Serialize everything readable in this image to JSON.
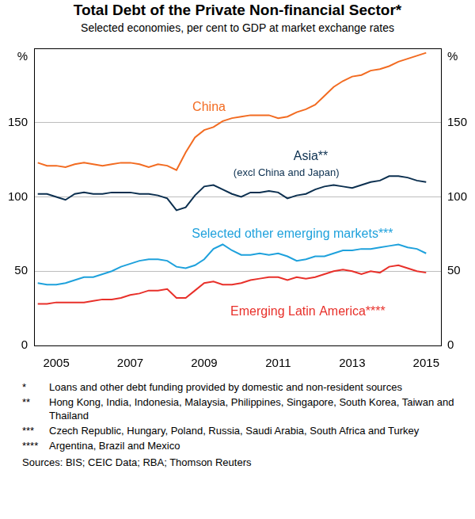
{
  "chart_data": {
    "type": "line",
    "title": "Total Debt of the Private Non-financial Sector*",
    "subtitle": "Selected economies, per cent to GDP at market exchange rates",
    "ylabel": "%",
    "x": [
      2004.5,
      2004.75,
      2005,
      2005.25,
      2005.5,
      2005.75,
      2006,
      2006.25,
      2006.5,
      2006.75,
      2007,
      2007.25,
      2007.5,
      2007.75,
      2008,
      2008.25,
      2008.5,
      2008.75,
      2009,
      2009.25,
      2009.5,
      2009.75,
      2010,
      2010.25,
      2010.5,
      2010.75,
      2011,
      2011.25,
      2011.5,
      2011.75,
      2012,
      2012.25,
      2012.5,
      2012.75,
      2013,
      2013.25,
      2013.5,
      2013.75,
      2014,
      2014.25,
      2014.5,
      2014.75,
      2015
    ],
    "xlim": [
      2004.4,
      2015.4
    ],
    "xticks": [
      2005,
      2007,
      2009,
      2011,
      2013,
      2015
    ],
    "ylim": [
      0,
      200
    ],
    "yticks": [
      0,
      50,
      100,
      150
    ],
    "grid": true,
    "series": [
      {
        "name": "China",
        "color": "#f26b21",
        "values": [
          123,
          121,
          121,
          120,
          122,
          123,
          122,
          121,
          122,
          123,
          123,
          122,
          120,
          122,
          121,
          118,
          130,
          140,
          145,
          147,
          151,
          153,
          154,
          155,
          155,
          155,
          153,
          154,
          157,
          159,
          162,
          168,
          174,
          178,
          181,
          182,
          185,
          186,
          188,
          191,
          193,
          195,
          197
        ]
      },
      {
        "name": "Asia**",
        "color": "#0b2f4f",
        "values": [
          102,
          102,
          100,
          98,
          102,
          103,
          102,
          102,
          103,
          103,
          103,
          102,
          102,
          101,
          99,
          91,
          93,
          101,
          107,
          108,
          105,
          102,
          100,
          103,
          103,
          104,
          103,
          99,
          101,
          102,
          105,
          107,
          108,
          107,
          106,
          108,
          110,
          111,
          114,
          114,
          113,
          111,
          110
        ]
      },
      {
        "name": "Selected other emerging markets***",
        "color": "#1ea1dc",
        "values": [
          42,
          41,
          41,
          42,
          44,
          46,
          46,
          48,
          50,
          53,
          55,
          57,
          58,
          58,
          57,
          53,
          52,
          54,
          58,
          65,
          68,
          64,
          61,
          61,
          62,
          61,
          62,
          60,
          57,
          58,
          60,
          60,
          62,
          64,
          64,
          65,
          65,
          66,
          67,
          68,
          66,
          65,
          62
        ]
      },
      {
        "name": "Emerging Latin America****",
        "color": "#e8302a",
        "values": [
          28,
          28,
          29,
          29,
          29,
          29,
          30,
          31,
          31,
          32,
          34,
          35,
          37,
          37,
          38,
          32,
          32,
          37,
          42,
          43,
          41,
          41,
          42,
          44,
          45,
          46,
          46,
          44,
          46,
          45,
          46,
          48,
          50,
          51,
          50,
          48,
          50,
          49,
          53,
          54,
          52,
          50,
          49
        ]
      }
    ],
    "annotations": [
      "(excl China and Japan)"
    ],
    "notes": [
      {
        "mark": "*",
        "text": "Loans and other debt funding provided by domestic and non-resident sources"
      },
      {
        "mark": "**",
        "text": "Hong Kong, India, Indonesia, Malaysia, Philippines, Singapore, South Korea, Taiwan and Thailand"
      },
      {
        "mark": "***",
        "text": "Czech Republic, Hungary, Poland, Russia, Saudi Arabia, South Africa and Turkey"
      },
      {
        "mark": "****",
        "text": "Argentina, Brazil and Mexico"
      }
    ],
    "source": "Sources: BIS; CEIC Data; RBA; Thomson Reuters"
  }
}
